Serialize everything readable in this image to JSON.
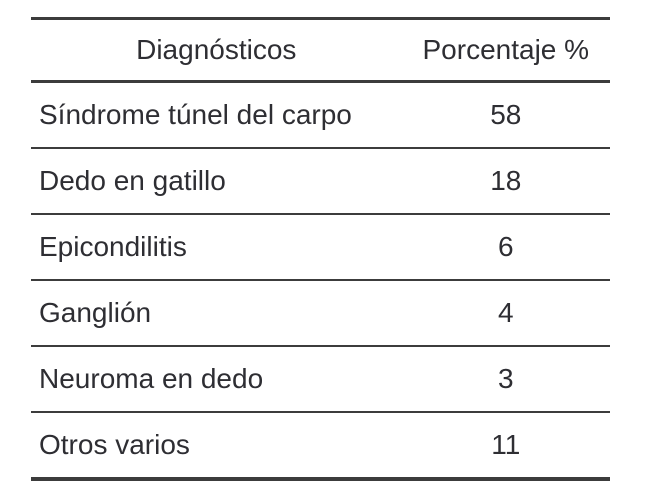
{
  "table": {
    "headers": {
      "diagnosis": "Diagnósticos",
      "percentage": "Porcentaje %"
    },
    "rows": [
      {
        "diagnosis": "Síndrome túnel del carpo",
        "percentage": "58"
      },
      {
        "diagnosis": "Dedo en gatillo",
        "percentage": "18"
      },
      {
        "diagnosis": "Epicondilitis",
        "percentage": "6"
      },
      {
        "diagnosis": "Ganglión",
        "percentage": "4"
      },
      {
        "diagnosis": "Neuroma en dedo",
        "percentage": "3"
      },
      {
        "diagnosis": "Otros varios",
        "percentage": "11"
      }
    ]
  },
  "colors": {
    "text": "#2e2e33",
    "rule": "#3c3c3c",
    "background": "#ffffff"
  },
  "chart_data": {
    "type": "table",
    "title": "",
    "columns": [
      "Diagnósticos",
      "Porcentaje %"
    ],
    "rows": [
      [
        "Síndrome túnel del carpo",
        58
      ],
      [
        "Dedo en gatillo",
        18
      ],
      [
        "Epicondilitis",
        6
      ],
      [
        "Ganglión",
        4
      ],
      [
        "Neuroma en dedo",
        3
      ],
      [
        "Otros varios",
        11
      ]
    ]
  }
}
